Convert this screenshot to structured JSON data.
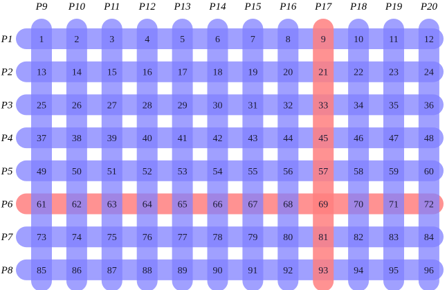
{
  "colors": {
    "line": "#8080ff",
    "line_highlight": "#ff7f7f",
    "cell_text": "#1a1a33",
    "background": "#ffffff"
  },
  "column_labels": [
    "P9",
    "P10",
    "P11",
    "P12",
    "P13",
    "P14",
    "P15",
    "P16",
    "P17",
    "P18",
    "P19",
    "P20"
  ],
  "row_labels": [
    "P1",
    "P2",
    "P3",
    "P4",
    "P5",
    "P6",
    "P7",
    "P8"
  ],
  "highlighted_column": "P17",
  "highlighted_row": "P6",
  "cells": [
    [
      "1",
      "2",
      "3",
      "4",
      "5",
      "6",
      "7",
      "8",
      "9",
      "10",
      "11",
      "12"
    ],
    [
      "13",
      "14",
      "15",
      "16",
      "17",
      "18",
      "19",
      "20",
      "21",
      "22",
      "23",
      "24"
    ],
    [
      "25",
      "26",
      "27",
      "28",
      "29",
      "30",
      "31",
      "32",
      "33",
      "34",
      "35",
      "36"
    ],
    [
      "37",
      "38",
      "39",
      "40",
      "41",
      "42",
      "43",
      "44",
      "45",
      "46",
      "47",
      "48"
    ],
    [
      "49",
      "50",
      "51",
      "52",
      "53",
      "54",
      "55",
      "56",
      "57",
      "58",
      "59",
      "60"
    ],
    [
      "61",
      "62",
      "63",
      "64",
      "65",
      "66",
      "67",
      "68",
      "69",
      "70",
      "71",
      "72"
    ],
    [
      "73",
      "74",
      "75",
      "76",
      "77",
      "78",
      "79",
      "80",
      "81",
      "82",
      "83",
      "84"
    ],
    [
      "85",
      "86",
      "87",
      "88",
      "89",
      "90",
      "91",
      "92",
      "93",
      "94",
      "95",
      "96"
    ]
  ]
}
